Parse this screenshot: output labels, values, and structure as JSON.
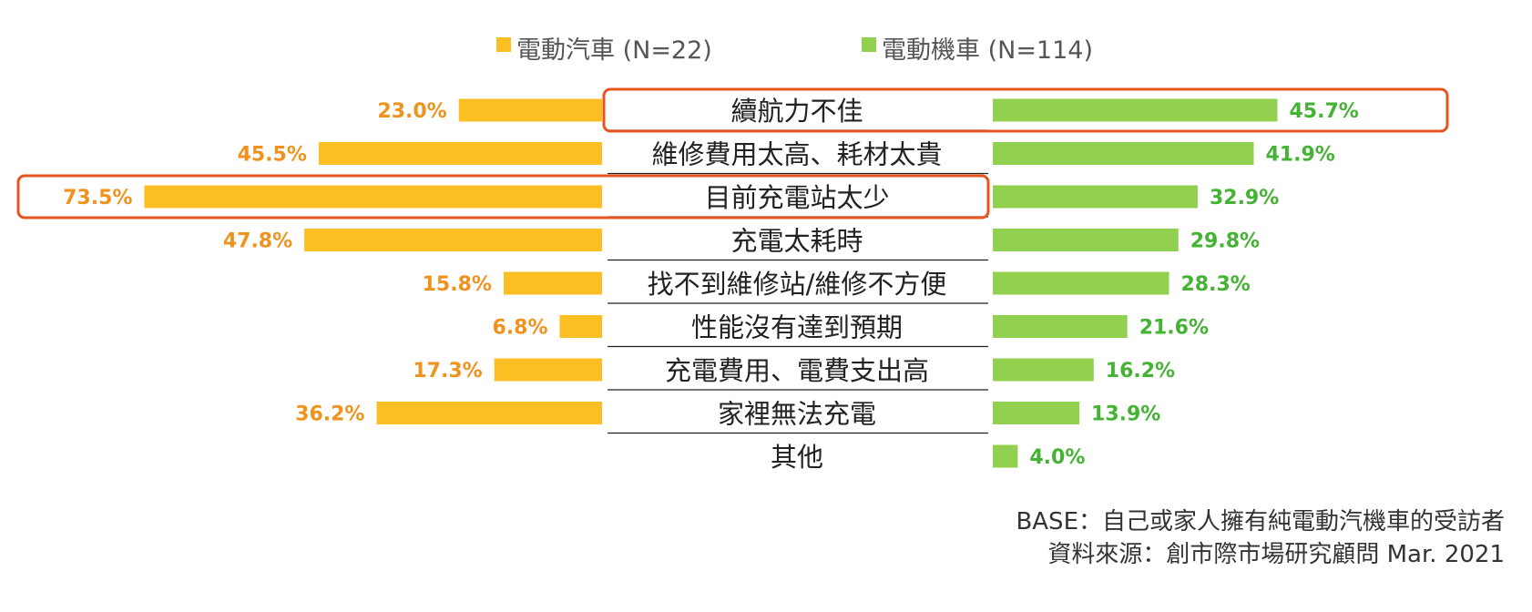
{
  "chart_data": {
    "type": "bar",
    "categories": [
      "續航力不佳",
      "維修費用太高、耗材太貴",
      "目前充電站太少",
      "充電太耗時",
      "找不到維修站/維修不方便",
      "性能沒有達到預期",
      "充電費用、電費支出高",
      "家裡無法充電",
      "其他"
    ],
    "series": [
      {
        "name": "電動汽車 (N=22)",
        "color": "#FBBF24",
        "label_color": "#F0921E",
        "values": [
          23.0,
          45.5,
          73.5,
          47.8,
          15.8,
          6.8,
          17.3,
          36.2,
          null
        ],
        "labels": [
          "23.0%",
          "45.5%",
          "73.5%",
          "47.8%",
          "15.8%",
          "6.8%",
          "17.3%",
          "36.2%",
          ""
        ],
        "highlight": [
          2
        ]
      },
      {
        "name": "電動機車 (N=114)",
        "color": "#92D050",
        "label_color": "#44B334",
        "values": [
          45.7,
          41.9,
          32.9,
          29.8,
          28.3,
          21.6,
          16.2,
          13.9,
          4.0
        ],
        "labels": [
          "45.7%",
          "41.9%",
          "32.9%",
          "29.8%",
          "28.3%",
          "21.6%",
          "16.2%",
          "13.9%",
          "4.0%"
        ],
        "highlight": [
          0
        ]
      }
    ],
    "highlight_color": "#E8541F",
    "value_max": 80,
    "legend_position": "top-center",
    "grid": false,
    "base_note": "BASE：自己或家人擁有純電動汽機車的受訪者",
    "source_note": "資料來源：創市際市場研究顧問 Mar. 2021"
  }
}
